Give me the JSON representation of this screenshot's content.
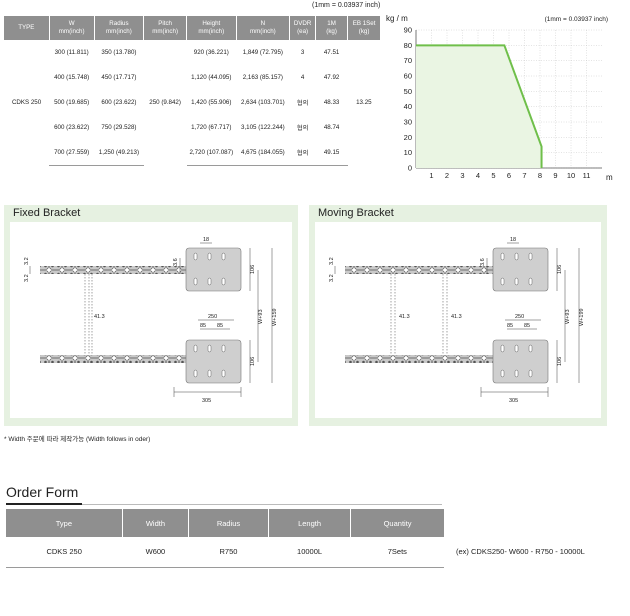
{
  "spec": {
    "unit_note": "(1mm = 0.03937 inch)",
    "headers": [
      [
        "TYPE"
      ],
      [
        "W",
        "mm(inch)"
      ],
      [
        "Radius",
        "mm(inch)"
      ],
      [
        "Pitch",
        "mm(inch)"
      ],
      [
        "Height",
        "mm(inch)"
      ],
      [
        "N",
        "mm(inch)"
      ],
      [
        "DVDR",
        "(ea)"
      ],
      [
        "1M",
        "(kg)"
      ],
      [
        "EB 1Set",
        "(kg)"
      ]
    ],
    "type": "CDKS 250",
    "pitch": "250 (9.842)",
    "eb_set": "13.25",
    "rows": [
      {
        "w": "300 (11.811)",
        "radius": "350 (13.780)",
        "height": "920 (36.221)",
        "n": "1,849 (72.795)",
        "dvdr": "3",
        "m1": "47.51"
      },
      {
        "w": "400 (15.748)",
        "radius": "450 (17.717)",
        "height": "1,120 (44.095)",
        "n": "2,163 (85.157)",
        "dvdr": "4",
        "m1": "47.92"
      },
      {
        "w": "500 (19.685)",
        "radius": "600 (23.622)",
        "height": "1,420 (55.906)",
        "n": "2,634 (103.701)",
        "dvdr": "협의",
        "m1": "48.33"
      },
      {
        "w": "600 (23.622)",
        "radius": "750 (29.528)",
        "height": "1,720 (67.717)",
        "n": "3,105 (122.244)",
        "dvdr": "협의",
        "m1": "48.74"
      },
      {
        "w": "700 (27.559)",
        "radius": "1,250 (49.213)",
        "height": "2,720 (107.087)",
        "n": "4,675 (184.055)",
        "dvdr": "협의",
        "m1": "49.15"
      }
    ]
  },
  "chart_data": {
    "type": "line",
    "ylabel": "kg / m",
    "xlabel": "m",
    "note": "(1mm = 0.03937 inch)",
    "x_ticks": [
      1,
      2,
      3,
      4,
      5,
      6,
      7,
      8,
      9,
      10,
      11
    ],
    "y_ticks": [
      0,
      10,
      20,
      30,
      40,
      50,
      60,
      70,
      80,
      90
    ],
    "xlim": [
      0,
      12
    ],
    "ylim": [
      0,
      90
    ],
    "grid": true,
    "line_color": "#6fbf4a",
    "fill_color": "#eaf5e3",
    "series": [
      {
        "x": [
          0,
          5.7,
          8.1,
          8.1
        ],
        "y": [
          80,
          80,
          14,
          0
        ]
      }
    ]
  },
  "brackets": {
    "fixed": {
      "title": "Fixed Bracket",
      "dims": {
        "top_width": "18",
        "left_a": "3.2",
        "left_b": "3.2",
        "gap_a": "3.6",
        "hole_h": "106",
        "mid": "41.3",
        "span1": "250",
        "span2a": "85",
        "span2b": "85",
        "w93": "W+93",
        "w159": "W+159",
        "bot_h": "106",
        "base": "305"
      }
    },
    "moving": {
      "title": "Moving Bracket",
      "dims": {
        "top_width": "18",
        "left_a": "3.2",
        "left_b": "3.2",
        "gap_a": "3.6",
        "hole_h": "106",
        "mid_a": "41.3",
        "mid_b": "41.3",
        "span1": "250",
        "span2a": "85",
        "span2b": "85",
        "w93": "W+93",
        "w199": "W+199",
        "bot_h": "106",
        "base": "305"
      }
    }
  },
  "footnote": "* Width 주문에 따라 제작가능 (Width follows in oder)",
  "order": {
    "title": "Order Form",
    "headers": [
      "Type",
      "Width",
      "Radius",
      "Length",
      "Quantity"
    ],
    "values": [
      "CDKS 250",
      "W600",
      "R750",
      "10000L",
      "7Sets"
    ],
    "example": "(ex) CDKS250- W600 - R750 - 10000L"
  }
}
